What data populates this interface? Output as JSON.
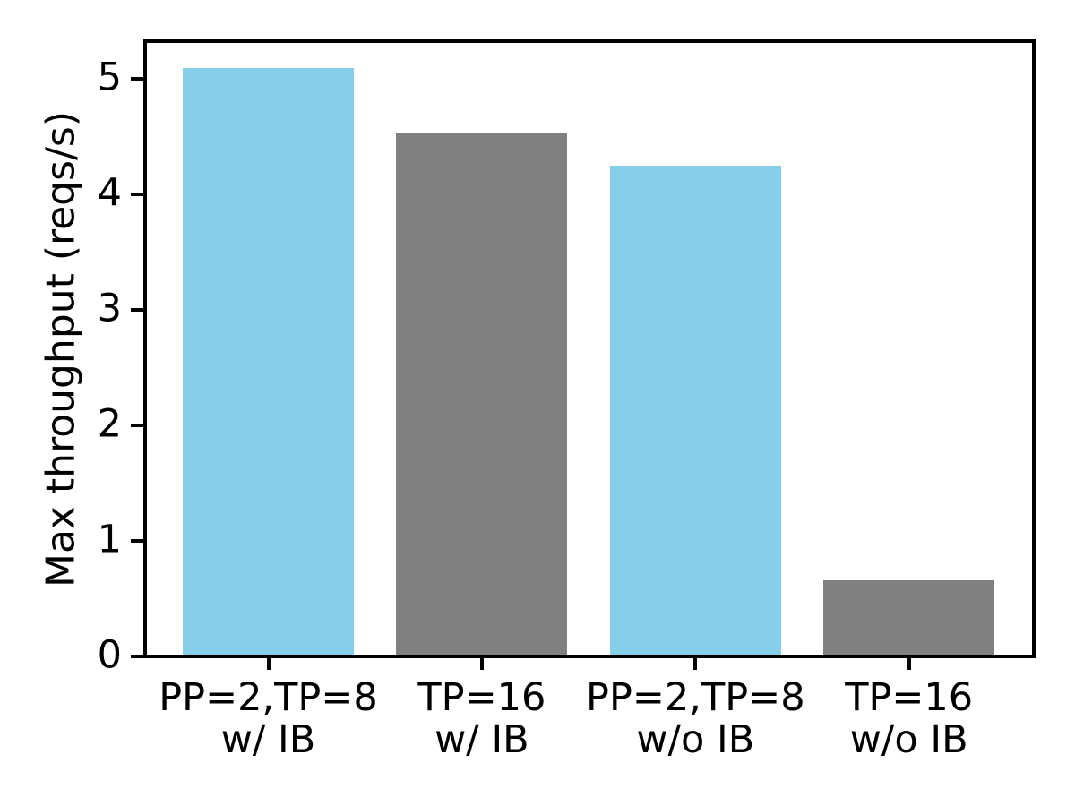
{
  "chart_data": {
    "type": "bar",
    "title": "",
    "xlabel": "",
    "ylabel": "Max throughput (reqs/s)",
    "categories": [
      [
        "PP=2,TP=8",
        "w/ IB"
      ],
      [
        "TP=16",
        "w/ IB"
      ],
      [
        "PP=2,TP=8",
        "w/o IB"
      ],
      [
        "TP=16",
        "w/o IB"
      ]
    ],
    "values": [
      5.08,
      4.52,
      4.23,
      0.64
    ],
    "bar_colors": [
      "#87CEEB",
      "#808080",
      "#87CEEB",
      "#808080"
    ],
    "yticks": [
      0,
      1,
      2,
      3,
      4,
      5
    ],
    "ylim": [
      0,
      5.3
    ],
    "grid": false,
    "legend_position": "none"
  },
  "colors": {
    "bar_blue": "#87CEEB",
    "bar_gray": "#808080",
    "axis": "#000000",
    "background": "#ffffff",
    "text": "#000000"
  }
}
